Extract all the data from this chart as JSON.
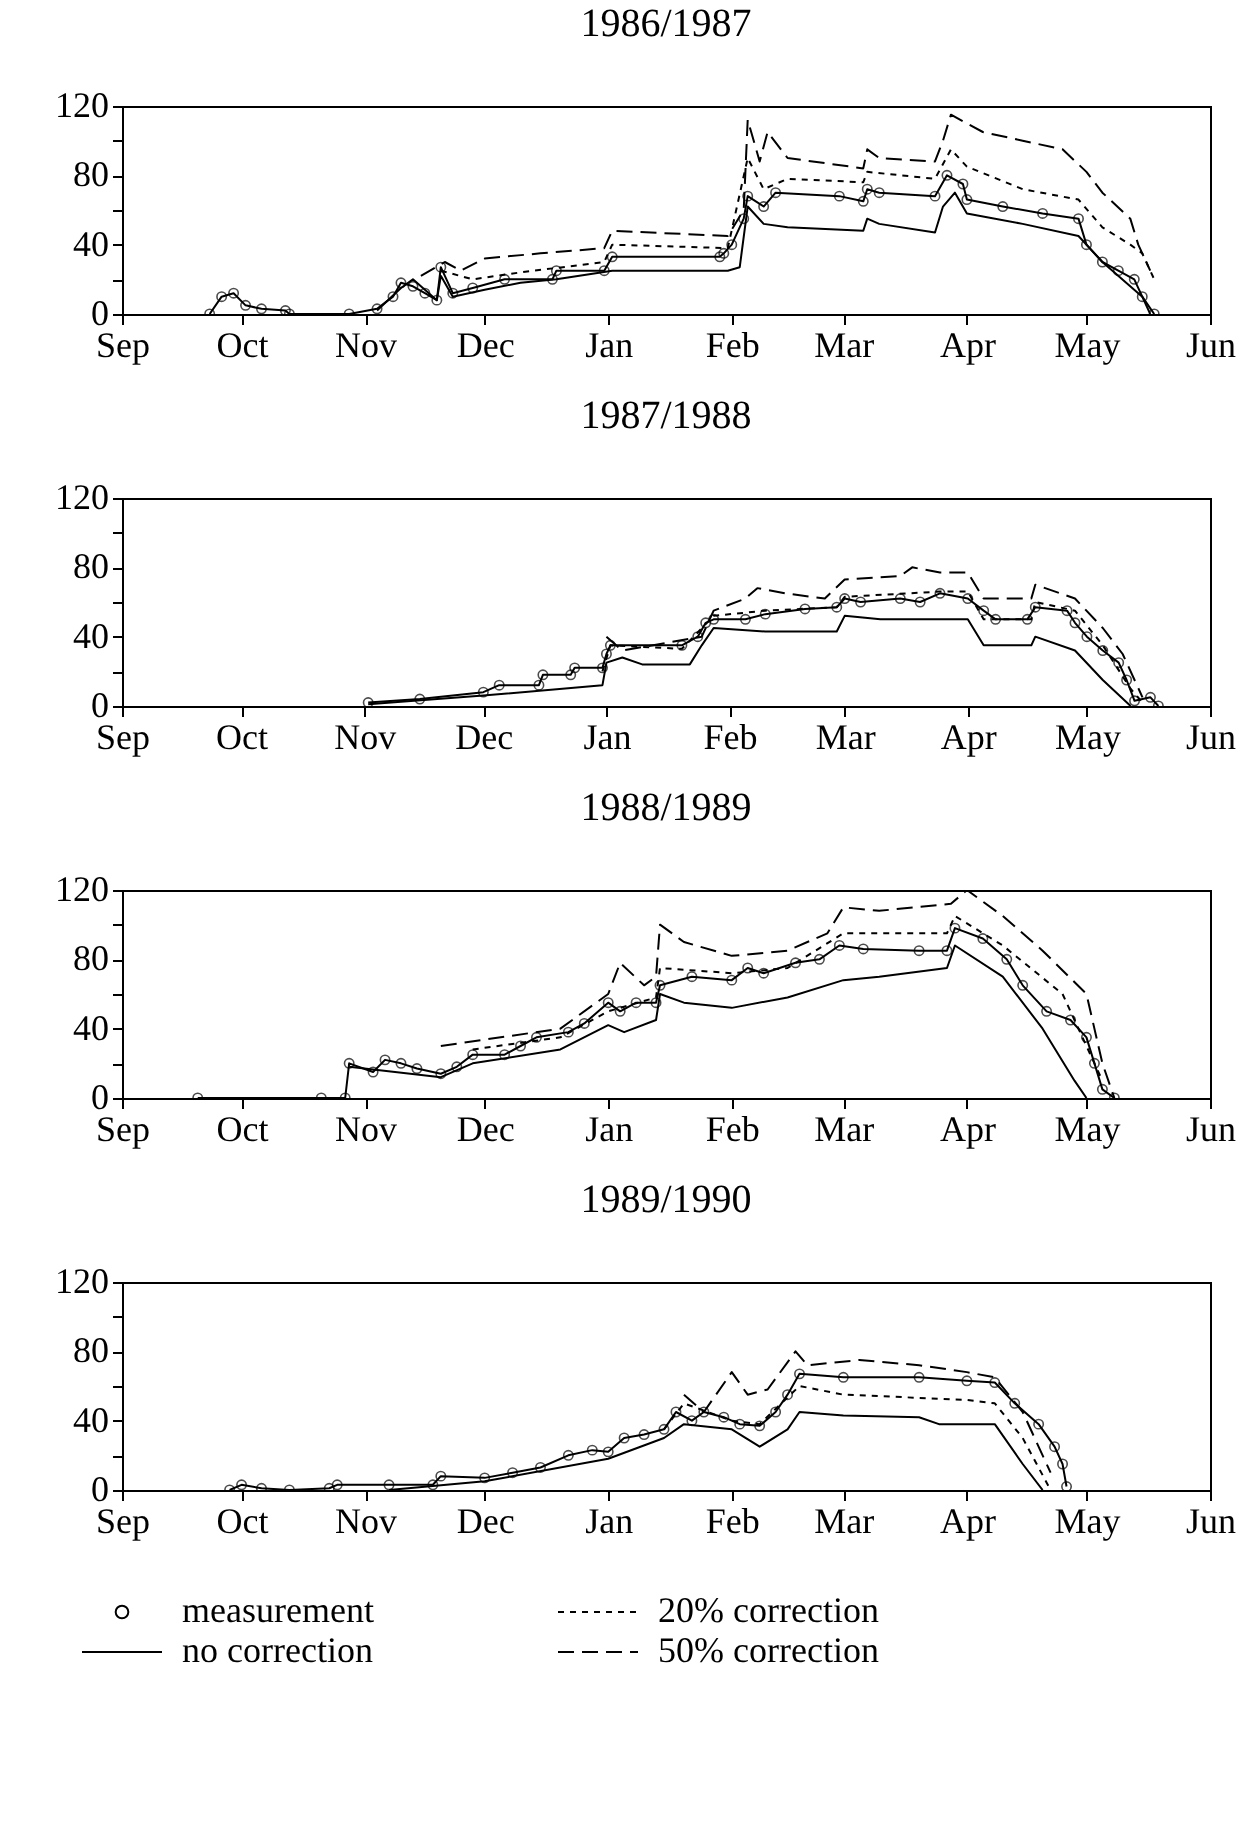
{
  "chart_data": [
    {
      "type": "line",
      "title": "1986/1987",
      "xlim": [
        "1986-09-01",
        "1987-06-01"
      ],
      "xticks": [
        {
          "value": "1986-09-01",
          "label": "Sep"
        },
        {
          "value": "1986-10-01",
          "label": "Oct"
        },
        {
          "value": "1986-11-01",
          "label": "Nov"
        },
        {
          "value": "1986-12-01",
          "label": "Dec"
        },
        {
          "value": "1987-01-01",
          "label": "Jan"
        },
        {
          "value": "1987-02-01",
          "label": "Feb"
        },
        {
          "value": "1987-03-01",
          "label": "Mar"
        },
        {
          "value": "1987-04-01",
          "label": "Apr"
        },
        {
          "value": "1987-05-01",
          "label": "May"
        },
        {
          "value": "1987-06-01",
          "label": "Jun"
        }
      ],
      "ylim": [
        0,
        120
      ],
      "yticks": [
        0,
        {
          "value": 20,
          "label": null
        },
        40,
        {
          "value": 60,
          "label": null
        },
        80,
        {
          "value": 100,
          "label": null
        },
        120
      ],
      "series": [
        {
          "color": "#000000",
          "line_style": "solid",
          "marker": "circle",
          "x": [
            "1986-09-23",
            "1986-09-26",
            "1986-09-29",
            "1986-10-02",
            "1986-10-06",
            "1986-10-12",
            "1986-10-13",
            "1986-10-28",
            "1986-11-04",
            "1986-11-08",
            "1986-11-10",
            "1986-11-13",
            "1986-11-16",
            "1986-11-19",
            "1986-11-20",
            "1986-11-23",
            "1986-11-28",
            "1986-12-06",
            "1986-12-18",
            "1986-12-19",
            "1986-12-31",
            "1987-01-02",
            "1987-01-29",
            "1987-01-30",
            "1987-02-01",
            "1987-02-04",
            "1987-02-05",
            "1987-02-09",
            "1987-02-12",
            "1987-02-28",
            "1987-03-06",
            "1987-03-07",
            "1987-03-10",
            "1987-03-24",
            "1987-03-27",
            "1987-03-31",
            "1987-04-01",
            "1987-04-10",
            "1987-04-20",
            "1987-04-29",
            "1987-05-01",
            "1987-05-05",
            "1987-05-09",
            "1987-05-13",
            "1987-05-15",
            "1987-05-18"
          ],
          "values": [
            0,
            10,
            12,
            5,
            3,
            2,
            0,
            0,
            3,
            10,
            18,
            16,
            12,
            8,
            27,
            12,
            15,
            20,
            20,
            25,
            25,
            33,
            33,
            35,
            40,
            55,
            68,
            62,
            70,
            68,
            65,
            72,
            70,
            68,
            80,
            75,
            66,
            62,
            58,
            55,
            40,
            30,
            25,
            20,
            10,
            0
          ]
        },
        {
          "color": "#000000",
          "line_style": "dotted",
          "marker": "none",
          "x": [
            "1986-11-20",
            "1986-11-28",
            "1986-12-10",
            "1986-12-31",
            "1987-01-02",
            "1987-01-31",
            "1987-02-05",
            "1987-02-09",
            "1987-02-15",
            "1987-03-06",
            "1987-03-07",
            "1987-03-24",
            "1987-03-28",
            "1987-04-01",
            "1987-04-15",
            "1987-04-29",
            "1987-05-05",
            "1987-05-12",
            "1987-05-15",
            "1987-05-18"
          ],
          "values": [
            25,
            20,
            24,
            30,
            40,
            38,
            90,
            72,
            78,
            76,
            82,
            78,
            95,
            85,
            72,
            66,
            50,
            40,
            35,
            20
          ]
        },
        {
          "color": "#000000",
          "line_style": "solid",
          "marker": "none",
          "x": [
            "1986-11-04",
            "1986-11-10",
            "1986-11-13",
            "1986-11-19",
            "1986-11-20",
            "1986-11-23",
            "1986-12-01",
            "1986-12-10",
            "1986-12-19",
            "1987-01-02",
            "1987-01-31",
            "1987-02-03",
            "1987-02-05",
            "1987-02-09",
            "1987-02-15",
            "1987-03-06",
            "1987-03-07",
            "1987-03-10",
            "1987-03-24",
            "1987-03-26",
            "1987-03-29",
            "1987-04-01",
            "1987-04-15",
            "1987-04-29",
            "1987-05-05",
            "1987-05-15",
            "1987-05-17"
          ],
          "values": [
            2,
            15,
            20,
            8,
            22,
            10,
            14,
            18,
            20,
            25,
            25,
            27,
            62,
            52,
            50,
            48,
            55,
            52,
            47,
            62,
            70,
            58,
            52,
            45,
            30,
            10,
            0
          ]
        },
        {
          "color": "#000000",
          "line_style": "dashed",
          "marker": "none",
          "x": [
            "1986-11-15",
            "1986-11-21",
            "1986-11-25",
            "1986-12-01",
            "1986-12-15",
            "1986-12-31",
            "1987-01-02",
            "1987-01-31",
            "1987-02-04",
            "1987-02-05",
            "1987-02-08",
            "1987-02-10",
            "1987-02-15",
            "1987-03-06",
            "1987-03-07",
            "1987-03-10",
            "1987-03-24",
            "1987-03-26",
            "1987-03-28",
            "1987-04-05",
            "1987-04-15",
            "1987-04-25",
            "1987-05-01",
            "1987-05-05",
            "1987-05-12",
            "1987-05-14",
            "1987-05-17"
          ],
          "values": [
            22,
            30,
            25,
            32,
            35,
            38,
            48,
            45,
            60,
            112,
            88,
            105,
            90,
            84,
            95,
            90,
            88,
            100,
            115,
            105,
            100,
            95,
            82,
            70,
            55,
            40,
            25
          ]
        }
      ]
    },
    {
      "type": "line",
      "title": "1987/1988",
      "xlim": [
        "1987-09-01",
        "1988-06-01"
      ],
      "xticks": [
        {
          "value": "1987-09-01",
          "label": "Sep"
        },
        {
          "value": "1987-10-01",
          "label": "Oct"
        },
        {
          "value": "1987-11-01",
          "label": "Nov"
        },
        {
          "value": "1987-12-01",
          "label": "Dec"
        },
        {
          "value": "1988-01-01",
          "label": "Jan"
        },
        {
          "value": "1988-02-01",
          "label": "Feb"
        },
        {
          "value": "1988-03-01",
          "label": "Mar"
        },
        {
          "value": "1988-04-01",
          "label": "Apr"
        },
        {
          "value": "1988-05-01",
          "label": "May"
        },
        {
          "value": "1988-06-01",
          "label": "Jun"
        }
      ],
      "ylim": [
        0,
        120
      ],
      "yticks": [
        0,
        {
          "value": 20,
          "label": null
        },
        40,
        {
          "value": 60,
          "label": null
        },
        80,
        {
          "value": 100,
          "label": null
        },
        120
      ],
      "series": [
        {
          "color": "#000000",
          "line_style": "solid",
          "marker": "circle",
          "x": [
            "1987-11-02",
            "1987-11-15",
            "1987-12-01",
            "1987-12-05",
            "1987-12-15",
            "1987-12-16",
            "1987-12-23",
            "1987-12-24",
            "1987-12-31",
            "1988-01-01",
            "1988-01-02",
            "1988-01-20",
            "1988-01-24",
            "1988-01-26",
            "1988-01-28",
            "1988-02-05",
            "1988-02-10",
            "1988-02-20",
            "1988-02-28",
            "1988-03-01",
            "1988-03-05",
            "1988-03-15",
            "1988-03-20",
            "1988-03-25",
            "1988-04-01",
            "1988-04-05",
            "1988-04-08",
            "1988-04-16",
            "1988-04-18",
            "1988-04-26",
            "1988-04-28",
            "1988-05-01",
            "1988-05-05",
            "1988-05-09",
            "1988-05-11",
            "1988-05-13",
            "1988-05-17",
            "1988-05-19"
          ],
          "values": [
            2,
            4,
            8,
            12,
            12,
            18,
            18,
            22,
            22,
            30,
            35,
            35,
            40,
            48,
            50,
            50,
            53,
            56,
            57,
            62,
            60,
            62,
            60,
            65,
            62,
            55,
            50,
            50,
            57,
            55,
            48,
            40,
            32,
            25,
            15,
            3,
            5,
            0
          ]
        },
        {
          "color": "#000000",
          "line_style": "dotted",
          "marker": "none",
          "x": [
            "1987-12-31",
            "1988-01-02",
            "1988-01-20",
            "1988-01-28",
            "1988-02-10",
            "1988-02-28",
            "1988-03-01",
            "1988-03-25",
            "1988-04-01",
            "1988-04-05",
            "1988-04-17",
            "1988-04-18",
            "1988-04-28",
            "1988-05-05",
            "1988-05-12",
            "1988-05-15"
          ],
          "values": [
            20,
            35,
            33,
            52,
            55,
            57,
            63,
            66,
            66,
            50,
            50,
            60,
            55,
            35,
            10,
            2
          ]
        },
        {
          "color": "#000000",
          "line_style": "solid",
          "marker": "none",
          "x": [
            "1987-11-02",
            "1987-12-01",
            "1987-12-31",
            "1988-01-01",
            "1988-01-05",
            "1988-01-10",
            "1988-01-22",
            "1988-01-25",
            "1988-01-28",
            "1988-02-10",
            "1988-02-28",
            "1988-03-01",
            "1988-03-10",
            "1988-04-01",
            "1988-04-05",
            "1988-04-17",
            "1988-04-18",
            "1988-04-28",
            "1988-05-05",
            "1988-05-12"
          ],
          "values": [
            1,
            6,
            12,
            25,
            28,
            24,
            24,
            35,
            45,
            43,
            43,
            52,
            50,
            50,
            35,
            35,
            40,
            32,
            15,
            0
          ]
        },
        {
          "color": "#000000",
          "line_style": "dashed",
          "marker": "none",
          "x": [
            "1988-01-01",
            "1988-01-05",
            "1988-01-25",
            "1988-01-28",
            "1988-02-05",
            "1988-02-08",
            "1988-02-15",
            "1988-02-25",
            "1988-03-01",
            "1988-03-15",
            "1988-03-18",
            "1988-03-25",
            "1988-04-01",
            "1988-04-05",
            "1988-04-17",
            "1988-04-18",
            "1988-04-28",
            "1988-05-05",
            "1988-05-10",
            "1988-05-15"
          ],
          "values": [
            40,
            32,
            40,
            55,
            62,
            68,
            65,
            62,
            73,
            75,
            80,
            77,
            77,
            62,
            62,
            70,
            62,
            45,
            30,
            5
          ]
        }
      ]
    },
    {
      "type": "line",
      "title": "1988/1989",
      "xlim": [
        "1988-09-01",
        "1989-06-01"
      ],
      "xticks": [
        {
          "value": "1988-09-01",
          "label": "Sep"
        },
        {
          "value": "1988-10-01",
          "label": "Oct"
        },
        {
          "value": "1988-11-01",
          "label": "Nov"
        },
        {
          "value": "1988-12-01",
          "label": "Dec"
        },
        {
          "value": "1989-01-01",
          "label": "Jan"
        },
        {
          "value": "1989-02-01",
          "label": "Feb"
        },
        {
          "value": "1989-03-01",
          "label": "Mar"
        },
        {
          "value": "1989-04-01",
          "label": "Apr"
        },
        {
          "value": "1989-05-01",
          "label": "May"
        },
        {
          "value": "1989-06-01",
          "label": "Jun"
        }
      ],
      "ylim": [
        0,
        120
      ],
      "yticks": [
        0,
        {
          "value": 20,
          "label": null
        },
        40,
        {
          "value": 60,
          "label": null
        },
        80,
        {
          "value": 100,
          "label": null
        },
        120
      ],
      "series": [
        {
          "color": "#000000",
          "line_style": "solid",
          "marker": "circle",
          "x": [
            "1988-09-20",
            "1988-10-21",
            "1988-10-27",
            "1988-10-28",
            "1988-11-03",
            "1988-11-06",
            "1988-11-10",
            "1988-11-14",
            "1988-11-20",
            "1988-11-24",
            "1988-11-28",
            "1988-12-06",
            "1988-12-10",
            "1988-12-14",
            "1988-12-22",
            "1988-12-26",
            "1989-01-01",
            "1989-01-04",
            "1989-01-08",
            "1989-01-13",
            "1989-01-14",
            "1989-01-22",
            "1989-02-01",
            "1989-02-05",
            "1989-02-09",
            "1989-02-17",
            "1989-02-23",
            "1989-02-28",
            "1989-03-06",
            "1989-03-20",
            "1989-03-27",
            "1989-03-29",
            "1989-04-05",
            "1989-04-11",
            "1989-04-15",
            "1989-04-21",
            "1989-04-27",
            "1989-05-01",
            "1989-05-03",
            "1989-05-05",
            "1989-05-08"
          ],
          "values": [
            0,
            0,
            0,
            20,
            15,
            22,
            20,
            17,
            14,
            18,
            25,
            25,
            30,
            35,
            38,
            43,
            55,
            50,
            55,
            55,
            65,
            70,
            68,
            75,
            72,
            78,
            80,
            88,
            86,
            85,
            85,
            98,
            92,
            80,
            65,
            50,
            45,
            35,
            20,
            5,
            0
          ]
        },
        {
          "color": "#000000",
          "line_style": "dotted",
          "marker": "none",
          "x": [
            "1988-11-28",
            "1988-12-20",
            "1989-01-01",
            "1989-01-13",
            "1989-01-14",
            "1989-02-01",
            "1989-02-15",
            "1989-03-01",
            "1989-03-27",
            "1989-03-29",
            "1989-04-10",
            "1989-04-25",
            "1989-05-05"
          ],
          "values": [
            28,
            35,
            50,
            58,
            75,
            72,
            75,
            95,
            95,
            105,
            88,
            60,
            10
          ]
        },
        {
          "color": "#000000",
          "line_style": "solid",
          "marker": "none",
          "x": [
            "1988-10-28",
            "1988-11-20",
            "1988-11-28",
            "1988-12-20",
            "1989-01-01",
            "1989-01-05",
            "1989-01-13",
            "1989-01-14",
            "1989-01-20",
            "1989-02-01",
            "1989-02-15",
            "1989-03-01",
            "1989-03-10",
            "1989-03-27",
            "1989-03-29",
            "1989-04-10",
            "1989-04-20",
            "1989-04-28",
            "1989-05-01"
          ],
          "values": [
            18,
            12,
            20,
            28,
            42,
            38,
            45,
            60,
            55,
            52,
            58,
            68,
            70,
            75,
            88,
            70,
            40,
            10,
            0
          ]
        },
        {
          "color": "#000000",
          "line_style": "dashed",
          "marker": "none",
          "x": [
            "1988-11-20",
            "1988-12-20",
            "1989-01-01",
            "1989-01-04",
            "1989-01-10",
            "1989-01-13",
            "1989-01-14",
            "1989-01-20",
            "1989-02-01",
            "1989-02-15",
            "1989-02-25",
            "1989-03-01",
            "1989-03-10",
            "1989-03-28",
            "1989-04-01",
            "1989-04-10",
            "1989-04-20",
            "1989-05-01",
            "1989-05-05",
            "1989-05-08"
          ],
          "values": [
            30,
            40,
            60,
            78,
            65,
            70,
            100,
            90,
            82,
            85,
            95,
            110,
            108,
            112,
            120,
            105,
            85,
            60,
            20,
            0
          ]
        }
      ]
    },
    {
      "type": "line",
      "title": "1989/1990",
      "xlim": [
        "1989-09-01",
        "1990-06-01"
      ],
      "xticks": [
        {
          "value": "1989-09-01",
          "label": "Sep"
        },
        {
          "value": "1989-10-01",
          "label": "Oct"
        },
        {
          "value": "1989-11-01",
          "label": "Nov"
        },
        {
          "value": "1989-12-01",
          "label": "Dec"
        },
        {
          "value": "1990-01-01",
          "label": "Jan"
        },
        {
          "value": "1990-02-01",
          "label": "Feb"
        },
        {
          "value": "1990-03-01",
          "label": "Mar"
        },
        {
          "value": "1990-04-01",
          "label": "Apr"
        },
        {
          "value": "1990-05-01",
          "label": "May"
        },
        {
          "value": "1990-06-01",
          "label": "Jun"
        }
      ],
      "ylim": [
        0,
        120
      ],
      "yticks": [
        0,
        {
          "value": 20,
          "label": null
        },
        40,
        {
          "value": 60,
          "label": null
        },
        80,
        {
          "value": 100,
          "label": null
        },
        120
      ],
      "legend": "bottom",
      "series": [
        {
          "name": "measurement",
          "color": "#000000",
          "line_style": "solid",
          "marker": "circle",
          "x": [
            "1989-09-28",
            "1989-10-01",
            "1989-10-06",
            "1989-10-13",
            "1989-10-23",
            "1989-10-25",
            "1989-11-07",
            "1989-11-18",
            "1989-11-20",
            "1989-12-01",
            "1989-12-08",
            "1989-12-15",
            "1989-12-22",
            "1989-12-28",
            "1990-01-01",
            "1990-01-05",
            "1990-01-10",
            "1990-01-15",
            "1990-01-18",
            "1990-01-22",
            "1990-01-25",
            "1990-01-30",
            "1990-02-03",
            "1990-02-08",
            "1990-02-12",
            "1990-02-15",
            "1990-02-18",
            "1990-03-01",
            "1990-03-20",
            "1990-04-01",
            "1990-04-08",
            "1990-04-13",
            "1990-04-19",
            "1990-04-23",
            "1990-04-25",
            "1990-04-26"
          ],
          "values": [
            0,
            3,
            1,
            0,
            1,
            3,
            3,
            3,
            8,
            7,
            10,
            13,
            20,
            23,
            22,
            30,
            32,
            35,
            45,
            40,
            45,
            42,
            38,
            37,
            45,
            55,
            67,
            65,
            65,
            63,
            62,
            50,
            38,
            25,
            15,
            2
          ]
        },
        {
          "name": "20% correction",
          "color": "#000000",
          "line_style": "dotted",
          "marker": "none",
          "x": [
            "1990-01-15",
            "1990-01-20",
            "1990-02-01",
            "1990-02-08",
            "1990-02-18",
            "1990-03-01",
            "1990-04-01",
            "1990-04-08",
            "1990-04-15",
            "1990-04-22"
          ],
          "values": [
            35,
            50,
            40,
            38,
            60,
            55,
            52,
            50,
            30,
            0
          ]
        },
        {
          "name": "no correction",
          "color": "#000000",
          "line_style": "solid",
          "marker": "none",
          "x": [
            "1989-11-07",
            "1989-12-01",
            "1990-01-01",
            "1990-01-15",
            "1990-01-20",
            "1990-02-01",
            "1990-02-08",
            "1990-02-15",
            "1990-02-18",
            "1990-03-01",
            "1990-03-20",
            "1990-03-25",
            "1990-04-08",
            "1990-04-15",
            "1990-04-20"
          ],
          "values": [
            0,
            5,
            18,
            30,
            38,
            35,
            25,
            35,
            45,
            43,
            42,
            38,
            38,
            15,
            0
          ]
        },
        {
          "name": "50% correction",
          "color": "#000000",
          "line_style": "dashed",
          "marker": "none",
          "x": [
            "1990-01-20",
            "1990-01-25",
            "1990-02-01",
            "1990-02-05",
            "1990-02-10",
            "1990-02-17",
            "1990-02-20",
            "1990-03-05",
            "1990-03-20",
            "1990-04-01",
            "1990-04-08",
            "1990-04-15",
            "1990-04-22"
          ],
          "values": [
            55,
            45,
            68,
            55,
            58,
            80,
            72,
            75,
            72,
            68,
            65,
            45,
            10
          ]
        }
      ]
    }
  ]
}
